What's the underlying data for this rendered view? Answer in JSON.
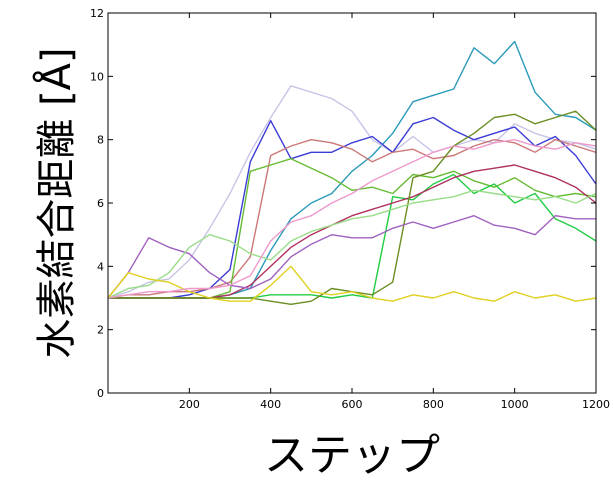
{
  "chart_data": {
    "type": "line",
    "xlabel": "ステップ",
    "ylabel": "水素結合距離 [Å]",
    "xlim": [
      0,
      1200
    ],
    "ylim": [
      0,
      12
    ],
    "xticks": [
      200,
      400,
      600,
      800,
      1000,
      1200
    ],
    "yticks": [
      0,
      2,
      4,
      6,
      8,
      10,
      12
    ],
    "grid": false,
    "x": [
      0,
      50,
      100,
      150,
      200,
      250,
      300,
      350,
      400,
      450,
      500,
      550,
      600,
      650,
      700,
      750,
      800,
      850,
      900,
      950,
      1000,
      1050,
      1100,
      1150,
      1200
    ],
    "series": [
      {
        "color": "#2a9ab8",
        "values": [
          3.0,
          3.0,
          3.0,
          3.0,
          3.0,
          3.0,
          3.1,
          3.3,
          4.5,
          5.5,
          6.0,
          6.3,
          7.0,
          7.5,
          8.2,
          9.2,
          9.4,
          9.6,
          10.9,
          10.4,
          11.1,
          9.5,
          8.8,
          8.7,
          8.3
        ]
      },
      {
        "color": "#c8c4e6",
        "values": [
          3.0,
          3.2,
          3.5,
          3.6,
          4.2,
          5.2,
          6.3,
          7.6,
          8.7,
          9.7,
          9.5,
          9.3,
          8.9,
          8.0,
          7.6,
          8.1,
          7.6,
          7.8,
          8.0,
          7.9,
          8.5,
          8.2,
          8.0,
          7.9,
          7.7
        ]
      },
      {
        "color": "#3b3bd6",
        "values": [
          3.0,
          3.0,
          3.0,
          3.0,
          3.1,
          3.3,
          3.9,
          7.3,
          8.6,
          7.4,
          7.6,
          7.6,
          7.9,
          8.1,
          7.6,
          8.5,
          8.7,
          8.3,
          8.0,
          8.2,
          8.4,
          7.8,
          8.1,
          7.5,
          6.6
        ]
      },
      {
        "color": "#cc7777",
        "values": [
          3.0,
          3.1,
          3.1,
          3.2,
          3.2,
          3.3,
          3.5,
          4.3,
          7.5,
          7.8,
          8.0,
          7.9,
          7.7,
          7.3,
          7.6,
          7.7,
          7.4,
          7.5,
          7.8,
          8.0,
          7.9,
          7.6,
          8.0,
          7.8,
          7.6
        ]
      },
      {
        "color": "#66bb33",
        "values": [
          3.0,
          3.0,
          3.0,
          3.0,
          3.0,
          3.0,
          3.2,
          7.0,
          7.2,
          7.4,
          7.1,
          6.8,
          6.4,
          6.5,
          6.3,
          6.9,
          6.8,
          7.0,
          6.7,
          6.5,
          6.8,
          6.4,
          6.2,
          6.3,
          6.2
        ]
      },
      {
        "color": "#22cc44",
        "values": [
          3.0,
          3.0,
          3.0,
          3.0,
          3.0,
          3.0,
          3.0,
          3.0,
          3.1,
          3.1,
          3.1,
          3.0,
          3.1,
          3.0,
          6.2,
          6.1,
          6.6,
          6.9,
          6.3,
          6.6,
          6.0,
          6.3,
          5.5,
          5.2,
          4.8
        ]
      },
      {
        "color": "#b03060",
        "values": [
          3.0,
          3.0,
          3.0,
          3.0,
          3.0,
          3.0,
          3.1,
          3.4,
          4.0,
          4.6,
          5.0,
          5.3,
          5.6,
          5.8,
          6.0,
          6.2,
          6.5,
          6.8,
          7.0,
          7.1,
          7.2,
          7.0,
          6.8,
          6.5,
          6.0
        ]
      },
      {
        "color": "#6b8e23",
        "values": [
          3.0,
          3.0,
          3.0,
          3.0,
          3.0,
          3.0,
          3.0,
          3.0,
          2.9,
          2.8,
          2.9,
          3.3,
          3.2,
          3.1,
          3.5,
          6.8,
          7.0,
          7.8,
          8.2,
          8.7,
          8.8,
          8.5,
          8.7,
          8.9,
          8.3
        ]
      },
      {
        "color": "#a060c0",
        "values": [
          3.0,
          3.8,
          4.9,
          4.6,
          4.4,
          3.8,
          3.4,
          3.3,
          3.6,
          4.3,
          4.7,
          5.0,
          4.9,
          4.9,
          5.2,
          5.4,
          5.2,
          5.4,
          5.6,
          5.3,
          5.2,
          5.0,
          5.6,
          5.5,
          5.5
        ]
      },
      {
        "color": "#99dd88",
        "values": [
          3.0,
          3.3,
          3.4,
          3.8,
          4.6,
          5.0,
          4.8,
          4.4,
          4.2,
          4.8,
          5.1,
          5.3,
          5.5,
          5.6,
          5.8,
          6.0,
          6.1,
          6.2,
          6.4,
          6.3,
          6.2,
          6.1,
          6.2,
          6.0,
          6.3
        ]
      },
      {
        "color": "#e0d020",
        "values": [
          3.0,
          3.8,
          3.6,
          3.5,
          3.2,
          3.0,
          2.9,
          2.9,
          3.4,
          4.0,
          3.2,
          3.1,
          3.2,
          3.0,
          2.9,
          3.1,
          3.0,
          3.2,
          3.0,
          2.9,
          3.2,
          3.0,
          3.1,
          2.9,
          3.0
        ]
      },
      {
        "color": "#ee99cc",
        "values": [
          3.0,
          3.1,
          3.2,
          3.2,
          3.3,
          3.3,
          3.4,
          3.7,
          4.8,
          5.4,
          5.6,
          6.0,
          6.3,
          6.7,
          7.0,
          7.3,
          7.6,
          7.8,
          7.7,
          7.9,
          8.0,
          7.8,
          7.7,
          7.9,
          7.8
        ]
      }
    ]
  }
}
